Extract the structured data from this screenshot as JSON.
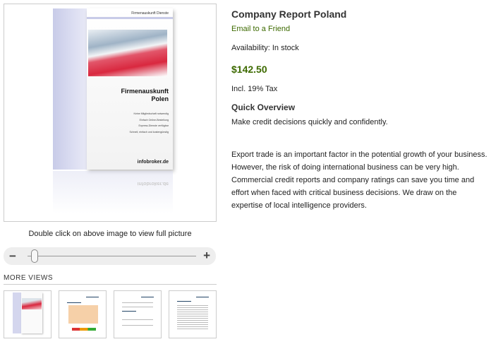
{
  "product": {
    "title": "Company Report Poland",
    "email_link": "Email to a Friend",
    "availability": "Availability: In stock",
    "price": "$142.50",
    "tax": "Incl. 19% Tax",
    "overview_heading": "Quick Overview",
    "short_description": "Make credit decisions quickly and confidently.",
    "description": "Export trade is an important factor in the potential growth of your business. However, the risk of doing international business can be very high. Commercial credit reports and company ratings can save you time and effort when faced with critical business decisions. We draw on the expertise of local intelligence providers."
  },
  "cover": {
    "header": "Firmenauskunft Dienste",
    "title_line1": "Firmenauskunft",
    "title_line2": "Polen",
    "bullets": [
      "Keine Mitgliedschaft notwendig",
      "Einfach Online-Bestellung",
      "Express-Dienste verfügbar",
      "Schnell, einfach und kostengünstig"
    ],
    "brand": "infobroker.de"
  },
  "gallery": {
    "caption": "Double click on above image to view full picture",
    "zoom_level": 0.05,
    "minus": "−",
    "plus": "+",
    "more_views": "MORE VIEWS",
    "thumbnails": [
      "cover",
      "report-page-1",
      "report-page-2",
      "report-page-3"
    ]
  },
  "colors": {
    "accent_green": "#3d6a00"
  }
}
